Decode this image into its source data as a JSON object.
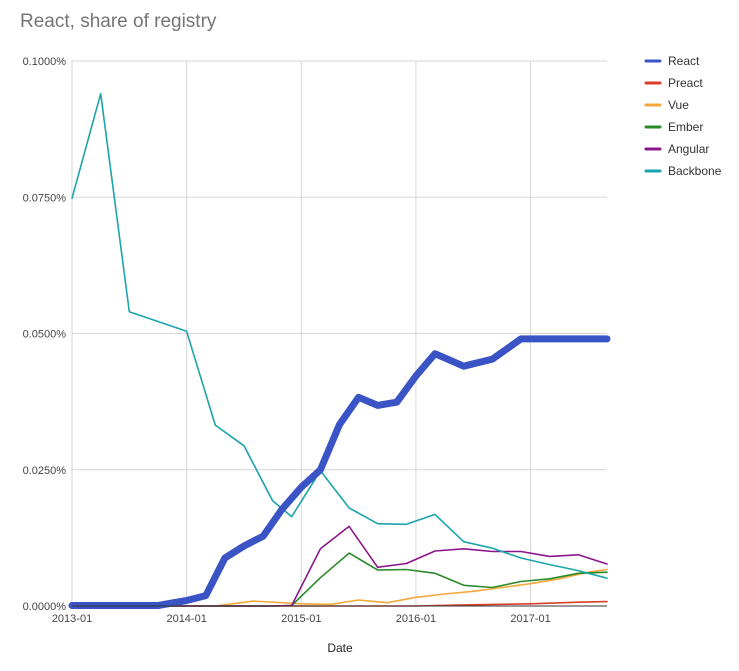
{
  "chart_data": {
    "type": "line",
    "title": "React, share of registry",
    "xlabel": "Date",
    "ylabel": "",
    "x_range": [
      "2013-01",
      "2017-09"
    ],
    "ylim": [
      0,
      0.1
    ],
    "y_ticks": [
      {
        "value": 0,
        "label": "0.0000%"
      },
      {
        "value": 0.025,
        "label": "0.0250%"
      },
      {
        "value": 0.05,
        "label": "0.0500%"
      },
      {
        "value": 0.075,
        "label": "0.0750%"
      },
      {
        "value": 0.1,
        "label": "0.1000%"
      }
    ],
    "x_ticks": [
      {
        "value": "2013-01",
        "label": "2013-01"
      },
      {
        "value": "2014-01",
        "label": "2014-01"
      },
      {
        "value": "2015-01",
        "label": "2015-01"
      },
      {
        "value": "2016-01",
        "label": "2016-01"
      },
      {
        "value": "2017-01",
        "label": "2017-01"
      }
    ],
    "grid": true,
    "legend_position": "right",
    "series": [
      {
        "name": "React",
        "color": "#3a53c5",
        "emphasis": true,
        "x": [
          "2013-01",
          "2013-04",
          "2013-07",
          "2013-10",
          "2014-01",
          "2014-03",
          "2014-05",
          "2014-07",
          "2014-09",
          "2014-11",
          "2015-01",
          "2015-03",
          "2015-05",
          "2015-07",
          "2015-09",
          "2015-11",
          "2016-01",
          "2016-03",
          "2016-06",
          "2016-09",
          "2016-12",
          "2017-03",
          "2017-06",
          "2017-08",
          "2017-09"
        ],
        "y": [
          0.0001,
          0.0001,
          0.0001,
          0.0001,
          0.001,
          0.0019,
          0.0088,
          0.011,
          0.0128,
          0.0178,
          0.0218,
          0.025,
          0.0333,
          0.0383,
          0.0368,
          0.0374,
          0.0422,
          0.0463,
          0.044,
          0.0453,
          0.049,
          0.049,
          0.049,
          0.049,
          0.049
        ]
      },
      {
        "name": "Preact",
        "color": "#d6402a",
        "x": [
          "2013-01",
          "2016-01",
          "2016-06",
          "2017-01",
          "2017-06",
          "2017-09"
        ],
        "y": [
          0,
          0,
          0.0002,
          0.0004,
          0.0007,
          0.0008
        ]
      },
      {
        "name": "Vue",
        "color": "#f4a83a",
        "x": [
          "2013-01",
          "2014-01",
          "2014-04",
          "2014-08",
          "2015-01",
          "2015-04",
          "2015-07",
          "2015-10",
          "2016-01",
          "2016-04",
          "2016-07",
          "2016-10",
          "2017-01",
          "2017-04",
          "2017-07",
          "2017-09"
        ],
        "y": [
          0,
          0,
          0,
          0.0009,
          0.0004,
          0.0003,
          0.0011,
          0.0006,
          0.0016,
          0.0022,
          0.0027,
          0.0034,
          0.0041,
          0.005,
          0.0062,
          0.0067
        ]
      },
      {
        "name": "Ember",
        "color": "#2b8a2b",
        "x": [
          "2013-01",
          "2014-10",
          "2014-12",
          "2015-03",
          "2015-06",
          "2015-09",
          "2015-12",
          "2016-03",
          "2016-06",
          "2016-09",
          "2016-12",
          "2017-03",
          "2017-06",
          "2017-09"
        ],
        "y": [
          0,
          0,
          0.0001,
          0.0052,
          0.0097,
          0.0066,
          0.0067,
          0.006,
          0.0038,
          0.0034,
          0.0045,
          0.005,
          0.006,
          0.0062
        ]
      },
      {
        "name": "Angular",
        "color": "#8b158b",
        "x": [
          "2013-01",
          "2014-10",
          "2014-12",
          "2015-03",
          "2015-06",
          "2015-09",
          "2015-12",
          "2016-03",
          "2016-06",
          "2016-09",
          "2016-12",
          "2017-03",
          "2017-06",
          "2017-09"
        ],
        "y": [
          0,
          0,
          0.0001,
          0.0105,
          0.0146,
          0.0071,
          0.0078,
          0.0101,
          0.0105,
          0.01,
          0.01,
          0.0091,
          0.0094,
          0.0077
        ]
      },
      {
        "name": "Backbone",
        "color": "#1ba4ac",
        "x": [
          "2013-01",
          "2013-04",
          "2013-07",
          "2014-01",
          "2014-04",
          "2014-07",
          "2014-10",
          "2014-12",
          "2015-03",
          "2015-06",
          "2015-09",
          "2015-12",
          "2016-03",
          "2016-06",
          "2016-09",
          "2016-12",
          "2017-03",
          "2017-06",
          "2017-09"
        ],
        "y": [
          0.0748,
          0.094,
          0.054,
          0.0504,
          0.0332,
          0.0294,
          0.0193,
          0.0164,
          0.0248,
          0.018,
          0.0151,
          0.015,
          0.0168,
          0.0118,
          0.0106,
          0.0088,
          0.0076,
          0.0065,
          0.0051
        ]
      }
    ]
  }
}
